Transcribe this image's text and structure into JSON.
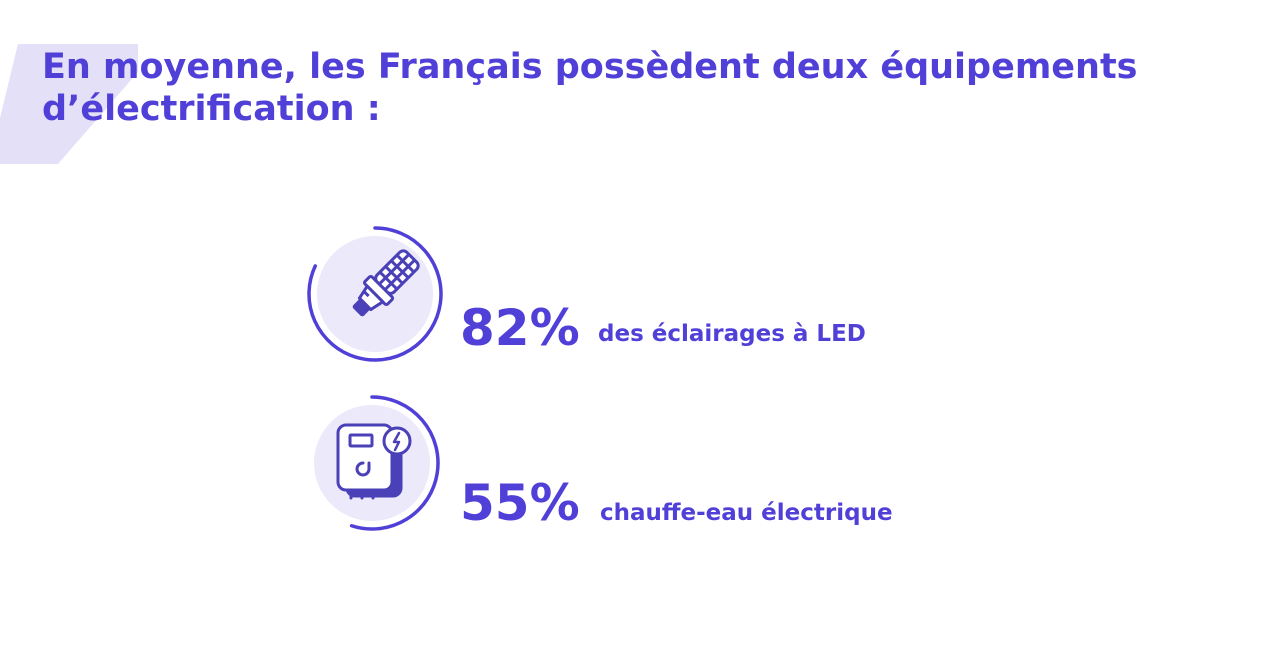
{
  "title": "En moyenne, les Français possèdent deux équipements d’électrification :",
  "chart_data": {
    "type": "pie",
    "categories": [
      "LED",
      "chauffe-eau électrique"
    ],
    "series": [
      {
        "values": [
          82,
          55
        ]
      }
    ],
    "items": [
      {
        "value_label": "82%",
        "value": 82,
        "label": "des éclairages à LED",
        "icon": "led-bulb-icon"
      },
      {
        "value_label": "55%",
        "value": 55,
        "label": "chauffe-eau électrique",
        "icon": "water-heater-icon"
      }
    ]
  },
  "colors": {
    "accent": "#5040d8",
    "icon_bg": "#ebe9fa",
    "corner_shape": "#e3e0f8"
  }
}
